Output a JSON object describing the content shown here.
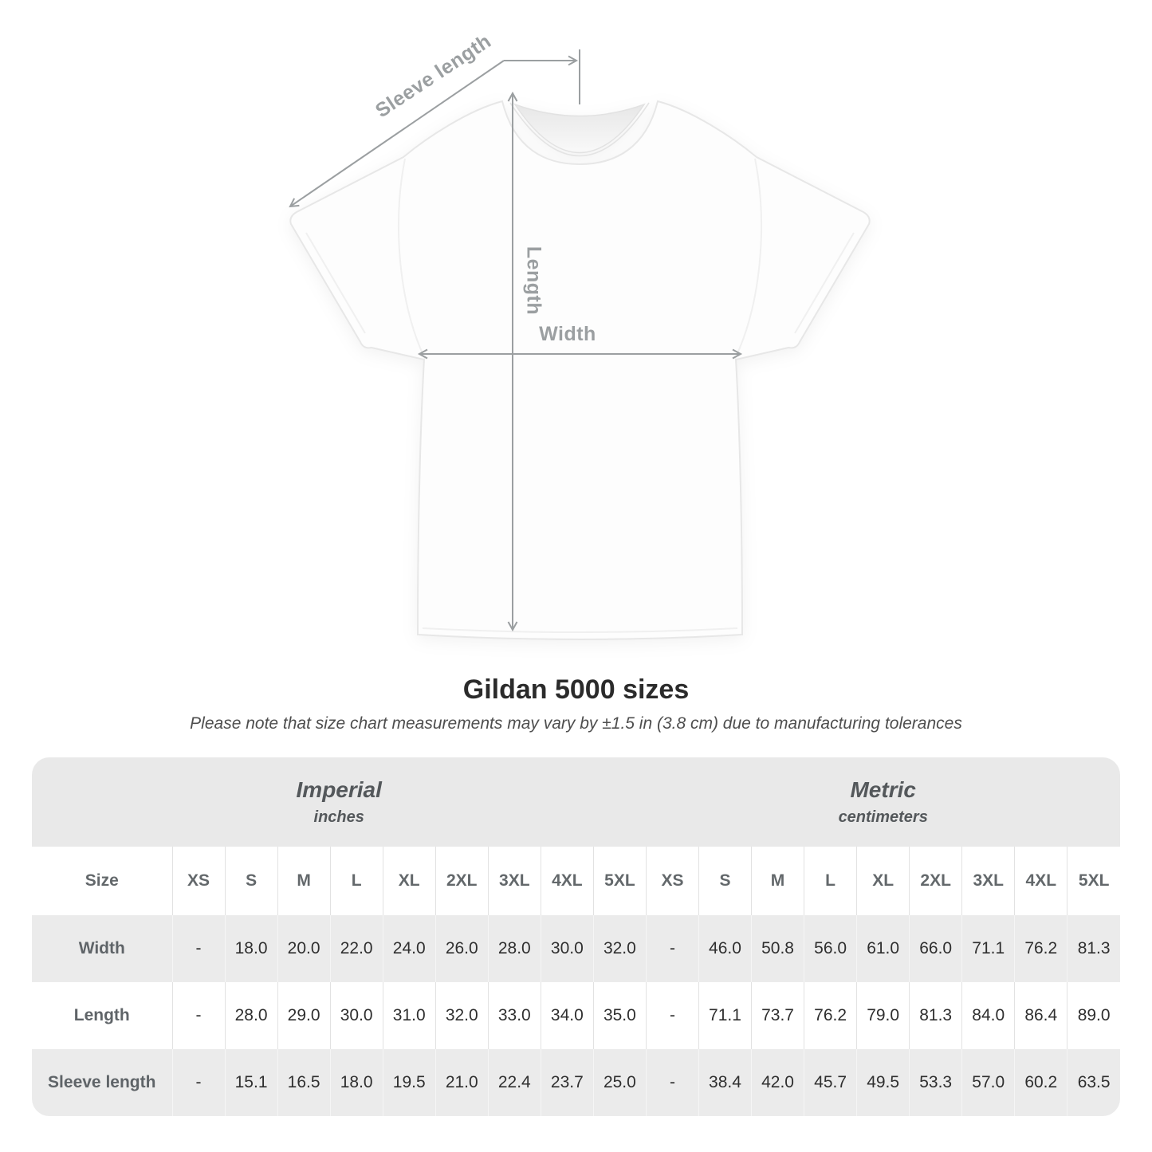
{
  "diagram": {
    "labels": {
      "sleeve_length": "Sleeve length",
      "length": "Length",
      "width": "Width"
    },
    "arrow_color": "#9b9fa1"
  },
  "heading": {
    "title": "Gildan 5000 sizes",
    "subtitle": "Please note that size chart measurements may vary by ±1.5 in (3.8 cm) due to manufacturing tolerances"
  },
  "table": {
    "corner_header": "Size",
    "unit_groups": [
      {
        "label": "Imperial",
        "sublabel": "inches"
      },
      {
        "label": "Metric",
        "sublabel": "centimeters"
      }
    ],
    "sizes": [
      "XS",
      "S",
      "M",
      "L",
      "XL",
      "2XL",
      "3XL",
      "4XL",
      "5XL"
    ],
    "rows": [
      {
        "label": "Width",
        "imperial": [
          "-",
          "18.0",
          "20.0",
          "22.0",
          "24.0",
          "26.0",
          "28.0",
          "30.0",
          "32.0"
        ],
        "metric": [
          "-",
          "46.0",
          "50.8",
          "56.0",
          "61.0",
          "66.0",
          "71.1",
          "76.2",
          "81.3"
        ]
      },
      {
        "label": "Length",
        "imperial": [
          "-",
          "28.0",
          "29.0",
          "30.0",
          "31.0",
          "32.0",
          "33.0",
          "34.0",
          "35.0"
        ],
        "metric": [
          "-",
          "71.1",
          "73.7",
          "76.2",
          "79.0",
          "81.3",
          "84.0",
          "86.4",
          "89.0"
        ]
      },
      {
        "label": "Sleeve length",
        "imperial": [
          "-",
          "15.1",
          "16.5",
          "18.0",
          "19.5",
          "21.0",
          "22.4",
          "23.7",
          "25.0"
        ],
        "metric": [
          "-",
          "38.4",
          "42.0",
          "45.7",
          "49.5",
          "53.3",
          "57.0",
          "60.2",
          "63.5"
        ]
      }
    ]
  },
  "chart_data": {
    "type": "table",
    "title": "Gildan 5000 sizes",
    "categories": [
      "XS",
      "S",
      "M",
      "L",
      "XL",
      "2XL",
      "3XL",
      "4XL",
      "5XL"
    ],
    "series": [
      {
        "name": "Width (inches)",
        "values": [
          null,
          18.0,
          20.0,
          22.0,
          24.0,
          26.0,
          28.0,
          30.0,
          32.0
        ]
      },
      {
        "name": "Length (inches)",
        "values": [
          null,
          28.0,
          29.0,
          30.0,
          31.0,
          32.0,
          33.0,
          34.0,
          35.0
        ]
      },
      {
        "name": "Sleeve length (inches)",
        "values": [
          null,
          15.1,
          16.5,
          18.0,
          19.5,
          21.0,
          22.4,
          23.7,
          25.0
        ]
      },
      {
        "name": "Width (cm)",
        "values": [
          null,
          46.0,
          50.8,
          56.0,
          61.0,
          66.0,
          71.1,
          76.2,
          81.3
        ]
      },
      {
        "name": "Length (cm)",
        "values": [
          null,
          71.1,
          73.7,
          76.2,
          79.0,
          81.3,
          84.0,
          86.4,
          89.0
        ]
      },
      {
        "name": "Sleeve length (cm)",
        "values": [
          null,
          38.4,
          42.0,
          45.7,
          49.5,
          53.3,
          57.0,
          60.2,
          63.5
        ]
      }
    ],
    "note": "±1.5 in (3.8 cm) manufacturing tolerance"
  },
  "colors": {
    "band": "#e9e9e9",
    "row_alt": "#ebebeb",
    "grid_line": "#e2e2e2",
    "label_text": "#5f6468",
    "value_text": "#2f2f2f",
    "title_text": "#2b2b2b",
    "diagram_gray": "#9b9fa1"
  }
}
